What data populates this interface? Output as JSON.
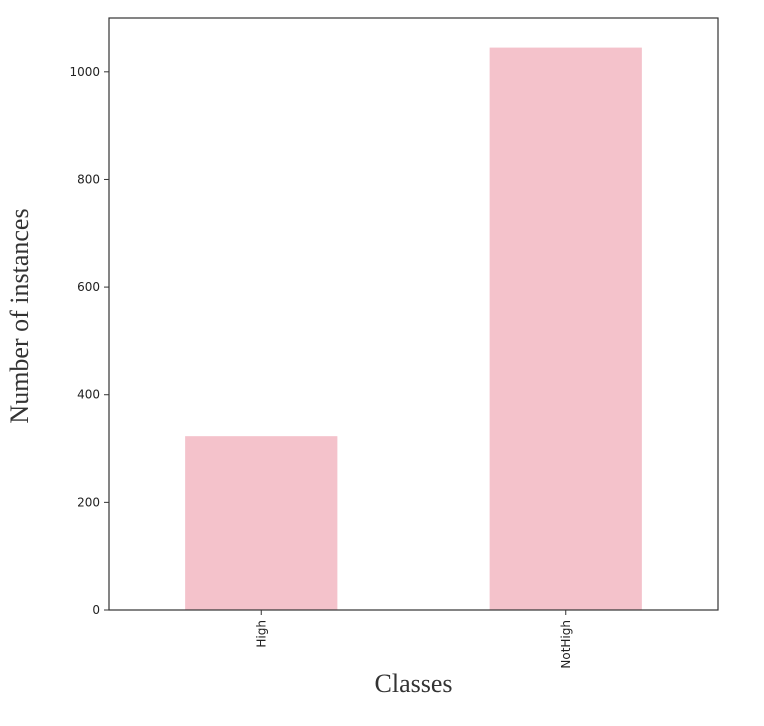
{
  "chart_data": {
    "type": "bar",
    "categories": [
      "High",
      "NotHigh"
    ],
    "values": [
      323,
      1045
    ],
    "title": "",
    "xlabel": "Classes",
    "ylabel": "Number of instances",
    "ylim": [
      0,
      1100
    ],
    "yticks": [
      0,
      200,
      400,
      600,
      800,
      1000
    ],
    "ytick_labels": [
      "0",
      "200",
      "400",
      "600",
      "800",
      "1000"
    ],
    "grid": false,
    "legend": "none",
    "bar_color": "#f4c2cb"
  }
}
